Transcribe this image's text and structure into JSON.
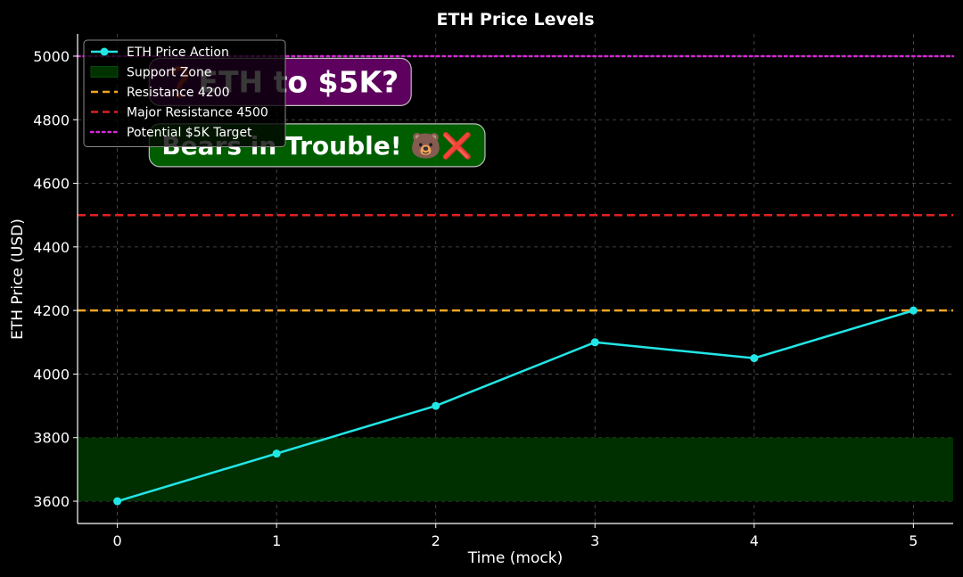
{
  "chart_data": {
    "type": "line",
    "title": "ETH Price Levels",
    "xlabel": "Time (mock)",
    "ylabel": "ETH Price (USD)",
    "xlim": [
      -0.25,
      5.25
    ],
    "ylim": [
      3530,
      5070
    ],
    "x_ticks": [
      0,
      1,
      2,
      3,
      4,
      5
    ],
    "y_ticks": [
      3600,
      3800,
      4000,
      4200,
      4400,
      4600,
      4800,
      5000
    ],
    "grid": true,
    "legend_position": "upper-left",
    "series": [
      {
        "name": "ETH Price Action",
        "x": [
          0,
          1,
          2,
          3,
          4,
          5
        ],
        "values": [
          3600,
          3750,
          3900,
          4100,
          4050,
          4200
        ],
        "color": "#22e6e6",
        "marker": "circle"
      }
    ],
    "support_zone": {
      "name": "Support Zone",
      "y_min": 3600,
      "y_max": 3800,
      "color": "#003300"
    },
    "reference_lines": [
      {
        "name": "Resistance 4200",
        "y": 4200,
        "color": "#f5a623",
        "style": "dashed"
      },
      {
        "name": "Major Resistance 4500",
        "y": 4500,
        "color": "#e02020",
        "style": "dashed"
      },
      {
        "name": "Potential $5K Target",
        "y": 5000,
        "color": "#d42ad4",
        "style": "dotted"
      }
    ],
    "annotations": [
      {
        "text": "❓ETH to $5K?",
        "x": 0.2,
        "y": 4920,
        "bg": "#660066",
        "size": 33
      },
      {
        "text": "Bears in Trouble! 🐻❌",
        "x": 0.2,
        "y": 4720,
        "bg": "#006600",
        "size": 28
      }
    ]
  }
}
